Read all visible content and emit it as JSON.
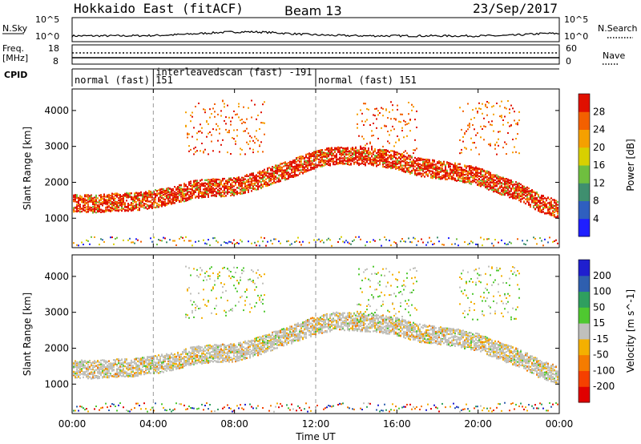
{
  "header": {
    "title": "Hokkaido East (fitACF)",
    "beam": "Beam 13",
    "date": "23/Sep/2017"
  },
  "side_labels": {
    "nsky": "N.Sky",
    "nsearch": "N.Search",
    "freq_top": "Freq.",
    "freq_unit": "[MHz]",
    "nave": "Nave",
    "cpid": "CPID"
  },
  "noise_axis": {
    "left_ticks": [
      "10^5",
      "10^0"
    ],
    "right_ticks": [
      "10^5",
      "10^0"
    ]
  },
  "freq_axis": {
    "left_ticks": [
      "18",
      "8"
    ],
    "right_ticks": [
      "60",
      "0"
    ]
  },
  "cpid_segments": [
    {
      "label": "normal (fast) 151",
      "start_hour": 0,
      "end_hour": 4
    },
    {
      "label": "interleavedscan (fast) -191",
      "start_hour": 4,
      "end_hour": 12
    },
    {
      "label": "normal (fast) 151",
      "start_hour": 12,
      "end_hour": 24
    }
  ],
  "colors": {
    "power_scale": [
      "#1f1fff",
      "#2f5fbf",
      "#3f8f6f",
      "#6fbf3f",
      "#d8d000",
      "#f5a000",
      "#f36000",
      "#e01000"
    ],
    "velocity_scale": [
      "#e00000",
      "#f54000",
      "#f57c00",
      "#f4b000",
      "#c0c0bc",
      "#4fc830",
      "#2f9f5f",
      "#2f5faf",
      "#1f1fcf"
    ]
  },
  "chart_data": [
    {
      "type": "heatmap",
      "title": "Power",
      "ylabel": "Slant Range [km]",
      "xlabel": "",
      "x_ticks": [
        "00:00",
        "04:00",
        "08:00",
        "12:00",
        "16:00",
        "20:00",
        "00:00"
      ],
      "y_ticks": [
        "1000",
        "2000",
        "3000",
        "4000"
      ],
      "ylim": [
        180,
        4600
      ],
      "xlim_hours": [
        0,
        24
      ],
      "colorbar_label": "Power [dB]",
      "colorbar_ticks": [
        "4",
        "8",
        "12",
        "16",
        "20",
        "24",
        "28"
      ],
      "colorbar_range": [
        0,
        32
      ],
      "dashed_hours": [
        4,
        12
      ],
      "main_band_range_km": [
        [
          0,
          1450
        ],
        [
          1,
          1420
        ],
        [
          2,
          1470
        ],
        [
          3,
          1480
        ],
        [
          4,
          1560
        ],
        [
          5,
          1660
        ],
        [
          6,
          1830
        ],
        [
          7,
          1870
        ],
        [
          8,
          1900
        ],
        [
          9,
          2050
        ],
        [
          10,
          2250
        ],
        [
          11,
          2450
        ],
        [
          12,
          2660
        ],
        [
          13,
          2780
        ],
        [
          14,
          2750
        ],
        [
          15,
          2720
        ],
        [
          16,
          2620
        ],
        [
          17,
          2450
        ],
        [
          18,
          2370
        ],
        [
          19,
          2300
        ],
        [
          20,
          2180
        ],
        [
          21,
          1950
        ],
        [
          22,
          1750
        ],
        [
          23,
          1450
        ],
        [
          24,
          1250
        ]
      ]
    },
    {
      "type": "heatmap",
      "title": "Velocity",
      "ylabel": "Slant Range [km]",
      "xlabel": "Time UT",
      "x_ticks": [
        "00:00",
        "04:00",
        "08:00",
        "12:00",
        "16:00",
        "20:00",
        "00:00"
      ],
      "y_ticks": [
        "1000",
        "2000",
        "3000",
        "4000"
      ],
      "ylim": [
        180,
        4600
      ],
      "xlim_hours": [
        0,
        24
      ],
      "colorbar_label": "Velocity [m s^-1]",
      "colorbar_ticks": [
        "-200",
        "-100",
        "-50",
        "-15",
        "15",
        "50",
        "100",
        "200"
      ],
      "colorbar_range": [
        -250,
        250
      ],
      "dashed_hours": [
        4,
        12
      ]
    }
  ]
}
